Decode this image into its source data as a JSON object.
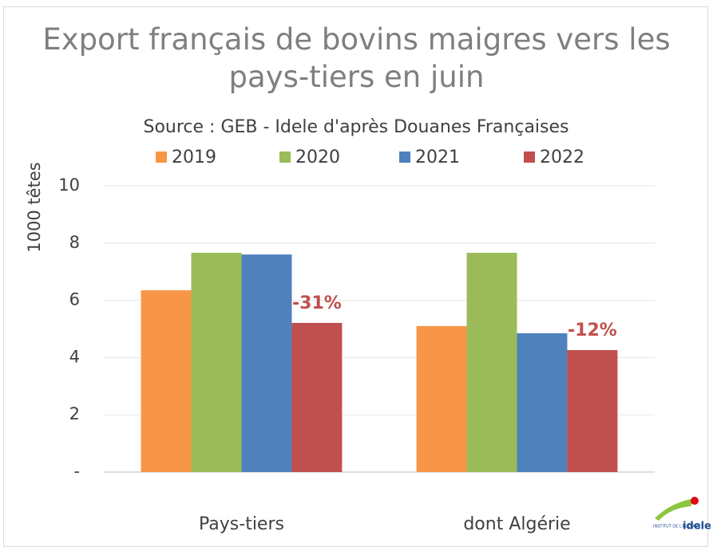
{
  "chart_data": {
    "type": "bar",
    "title": "Export français de bovins maigres vers les pays-tiers en juin",
    "subtitle": "Source : GEB - Idele d'après Douanes Françaises",
    "y_label": "1000 têtes",
    "categories": [
      "Pays-tiers",
      "dont Algérie"
    ],
    "series": [
      {
        "name": "2019",
        "color": "#f79646",
        "values": [
          6.35,
          5.1
        ]
      },
      {
        "name": "2020",
        "color": "#9bbb59",
        "values": [
          7.66,
          7.66
        ]
      },
      {
        "name": "2021",
        "color": "#4f81bd",
        "values": [
          7.6,
          4.85
        ]
      },
      {
        "name": "2022",
        "color": "#c0504d",
        "values": [
          5.21,
          4.26
        ]
      }
    ],
    "annotations": [
      "-31%",
      "-12%"
    ],
    "ylim": [
      0,
      10
    ],
    "yticks": [
      {
        "value": 0,
        "label": "-"
      },
      2,
      4,
      6,
      8,
      10
    ],
    "grid": true,
    "logo": [
      "INSTITUT DE L'ELEVAGE",
      "idele"
    ]
  }
}
